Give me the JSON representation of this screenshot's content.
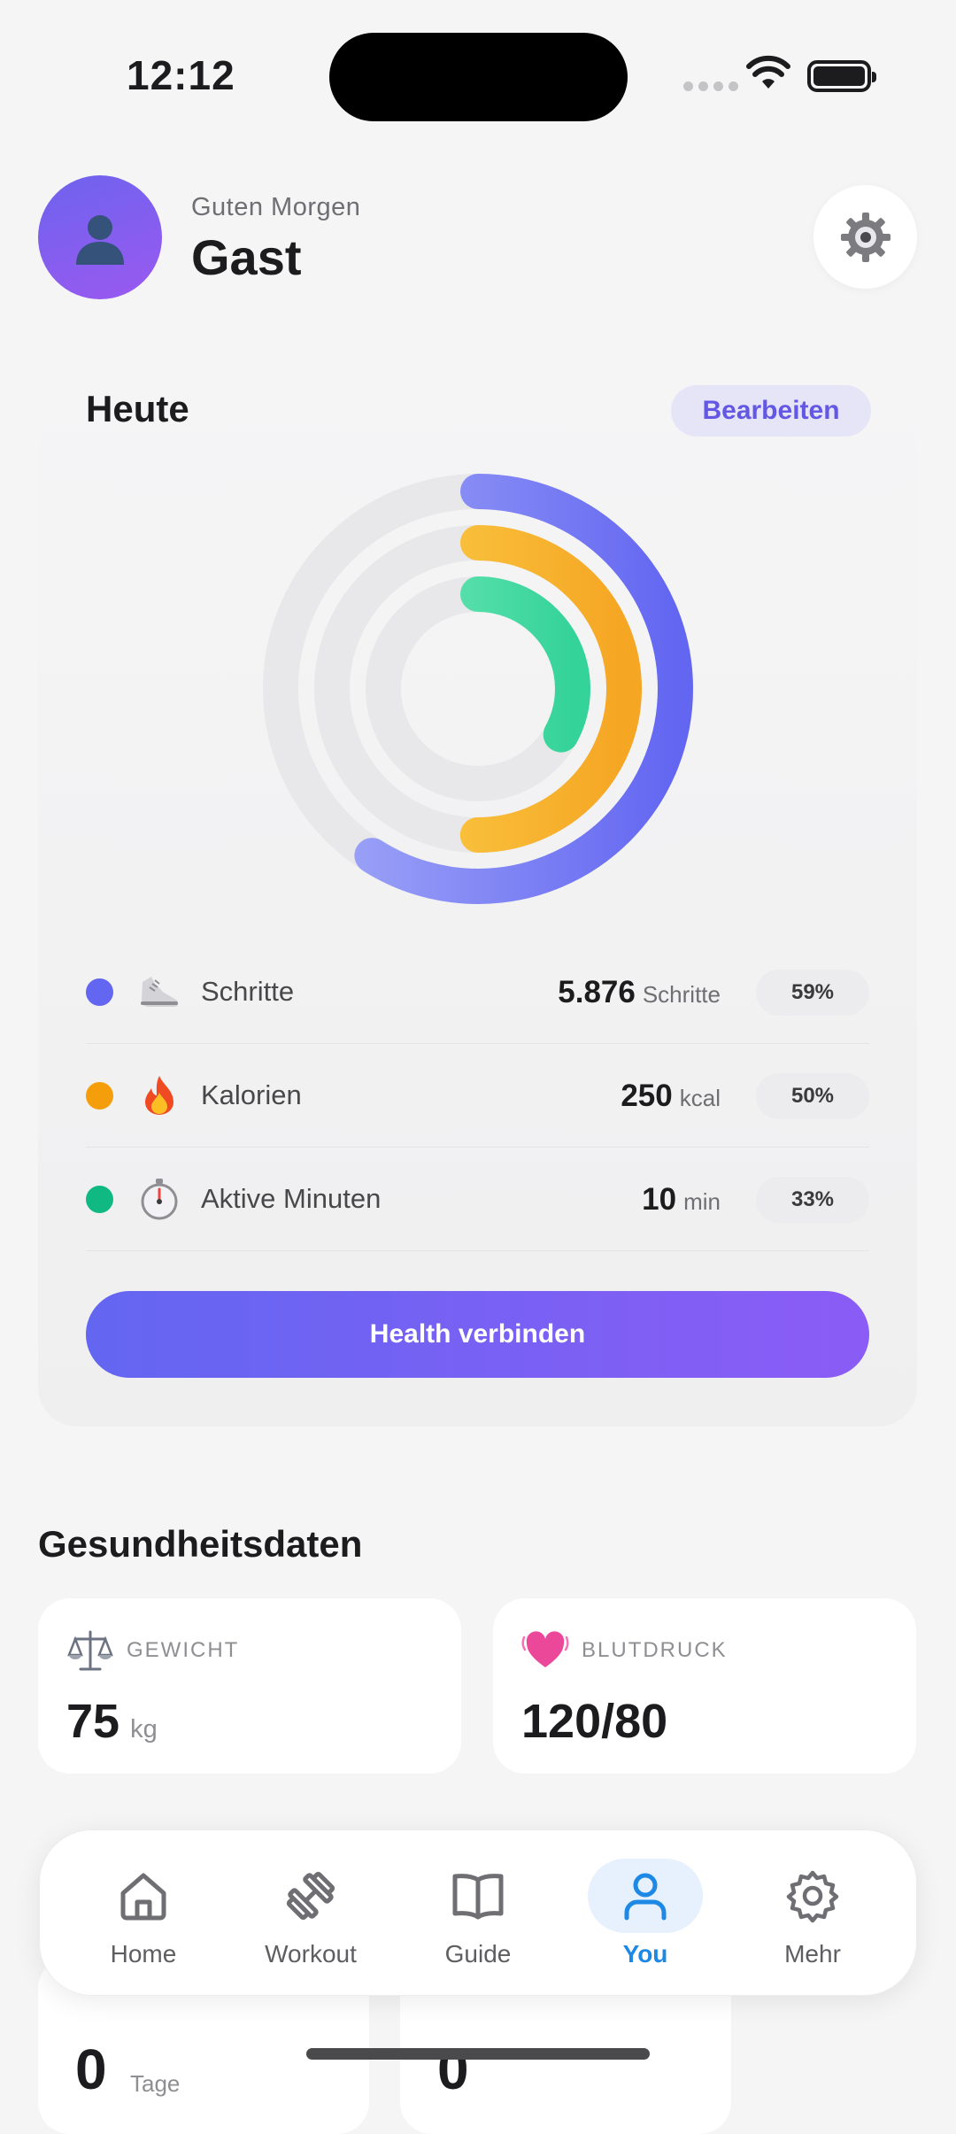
{
  "status_bar": {
    "time": "12:12"
  },
  "header": {
    "greeting": "Guten Morgen",
    "username": "Gast"
  },
  "today": {
    "title": "Heute",
    "edit_label": "Bearbeiten",
    "metrics": [
      {
        "label": "Schritte",
        "value": "5.876",
        "unit": "Schritte",
        "percent": "59%",
        "color": "#6366f1",
        "icon": "shoe-icon"
      },
      {
        "label": "Kalorien",
        "value": "250",
        "unit": "kcal",
        "percent": "50%",
        "color": "#f59e0b",
        "icon": "fire-icon"
      },
      {
        "label": "Aktive Minuten",
        "value": "10",
        "unit": "min",
        "percent": "33%",
        "color": "#10b981",
        "icon": "stopwatch-icon"
      }
    ],
    "connect_label": "Health verbinden"
  },
  "health_data": {
    "title": "Gesundheitsdaten",
    "weight": {
      "label": "GEWICHT",
      "value": "75",
      "unit": "kg",
      "icon": "scale-icon"
    },
    "blood_pressure": {
      "label": "BLUTDRUCK",
      "value": "120/80",
      "icon": "heart-icon"
    }
  },
  "lower_tiles": [
    {
      "value": "0",
      "unit": "Tage"
    },
    {
      "value": "0"
    }
  ],
  "tabs": [
    {
      "label": "Home",
      "icon": "home-icon"
    },
    {
      "label": "Workout",
      "icon": "dumbbell-icon"
    },
    {
      "label": "Guide",
      "icon": "book-icon"
    },
    {
      "label": "You",
      "icon": "person-icon",
      "active": true
    },
    {
      "label": "Mehr",
      "icon": "gear-icon"
    }
  ],
  "colors": {
    "accent": "#6366f1",
    "active_tab": "#1e88e5"
  }
}
